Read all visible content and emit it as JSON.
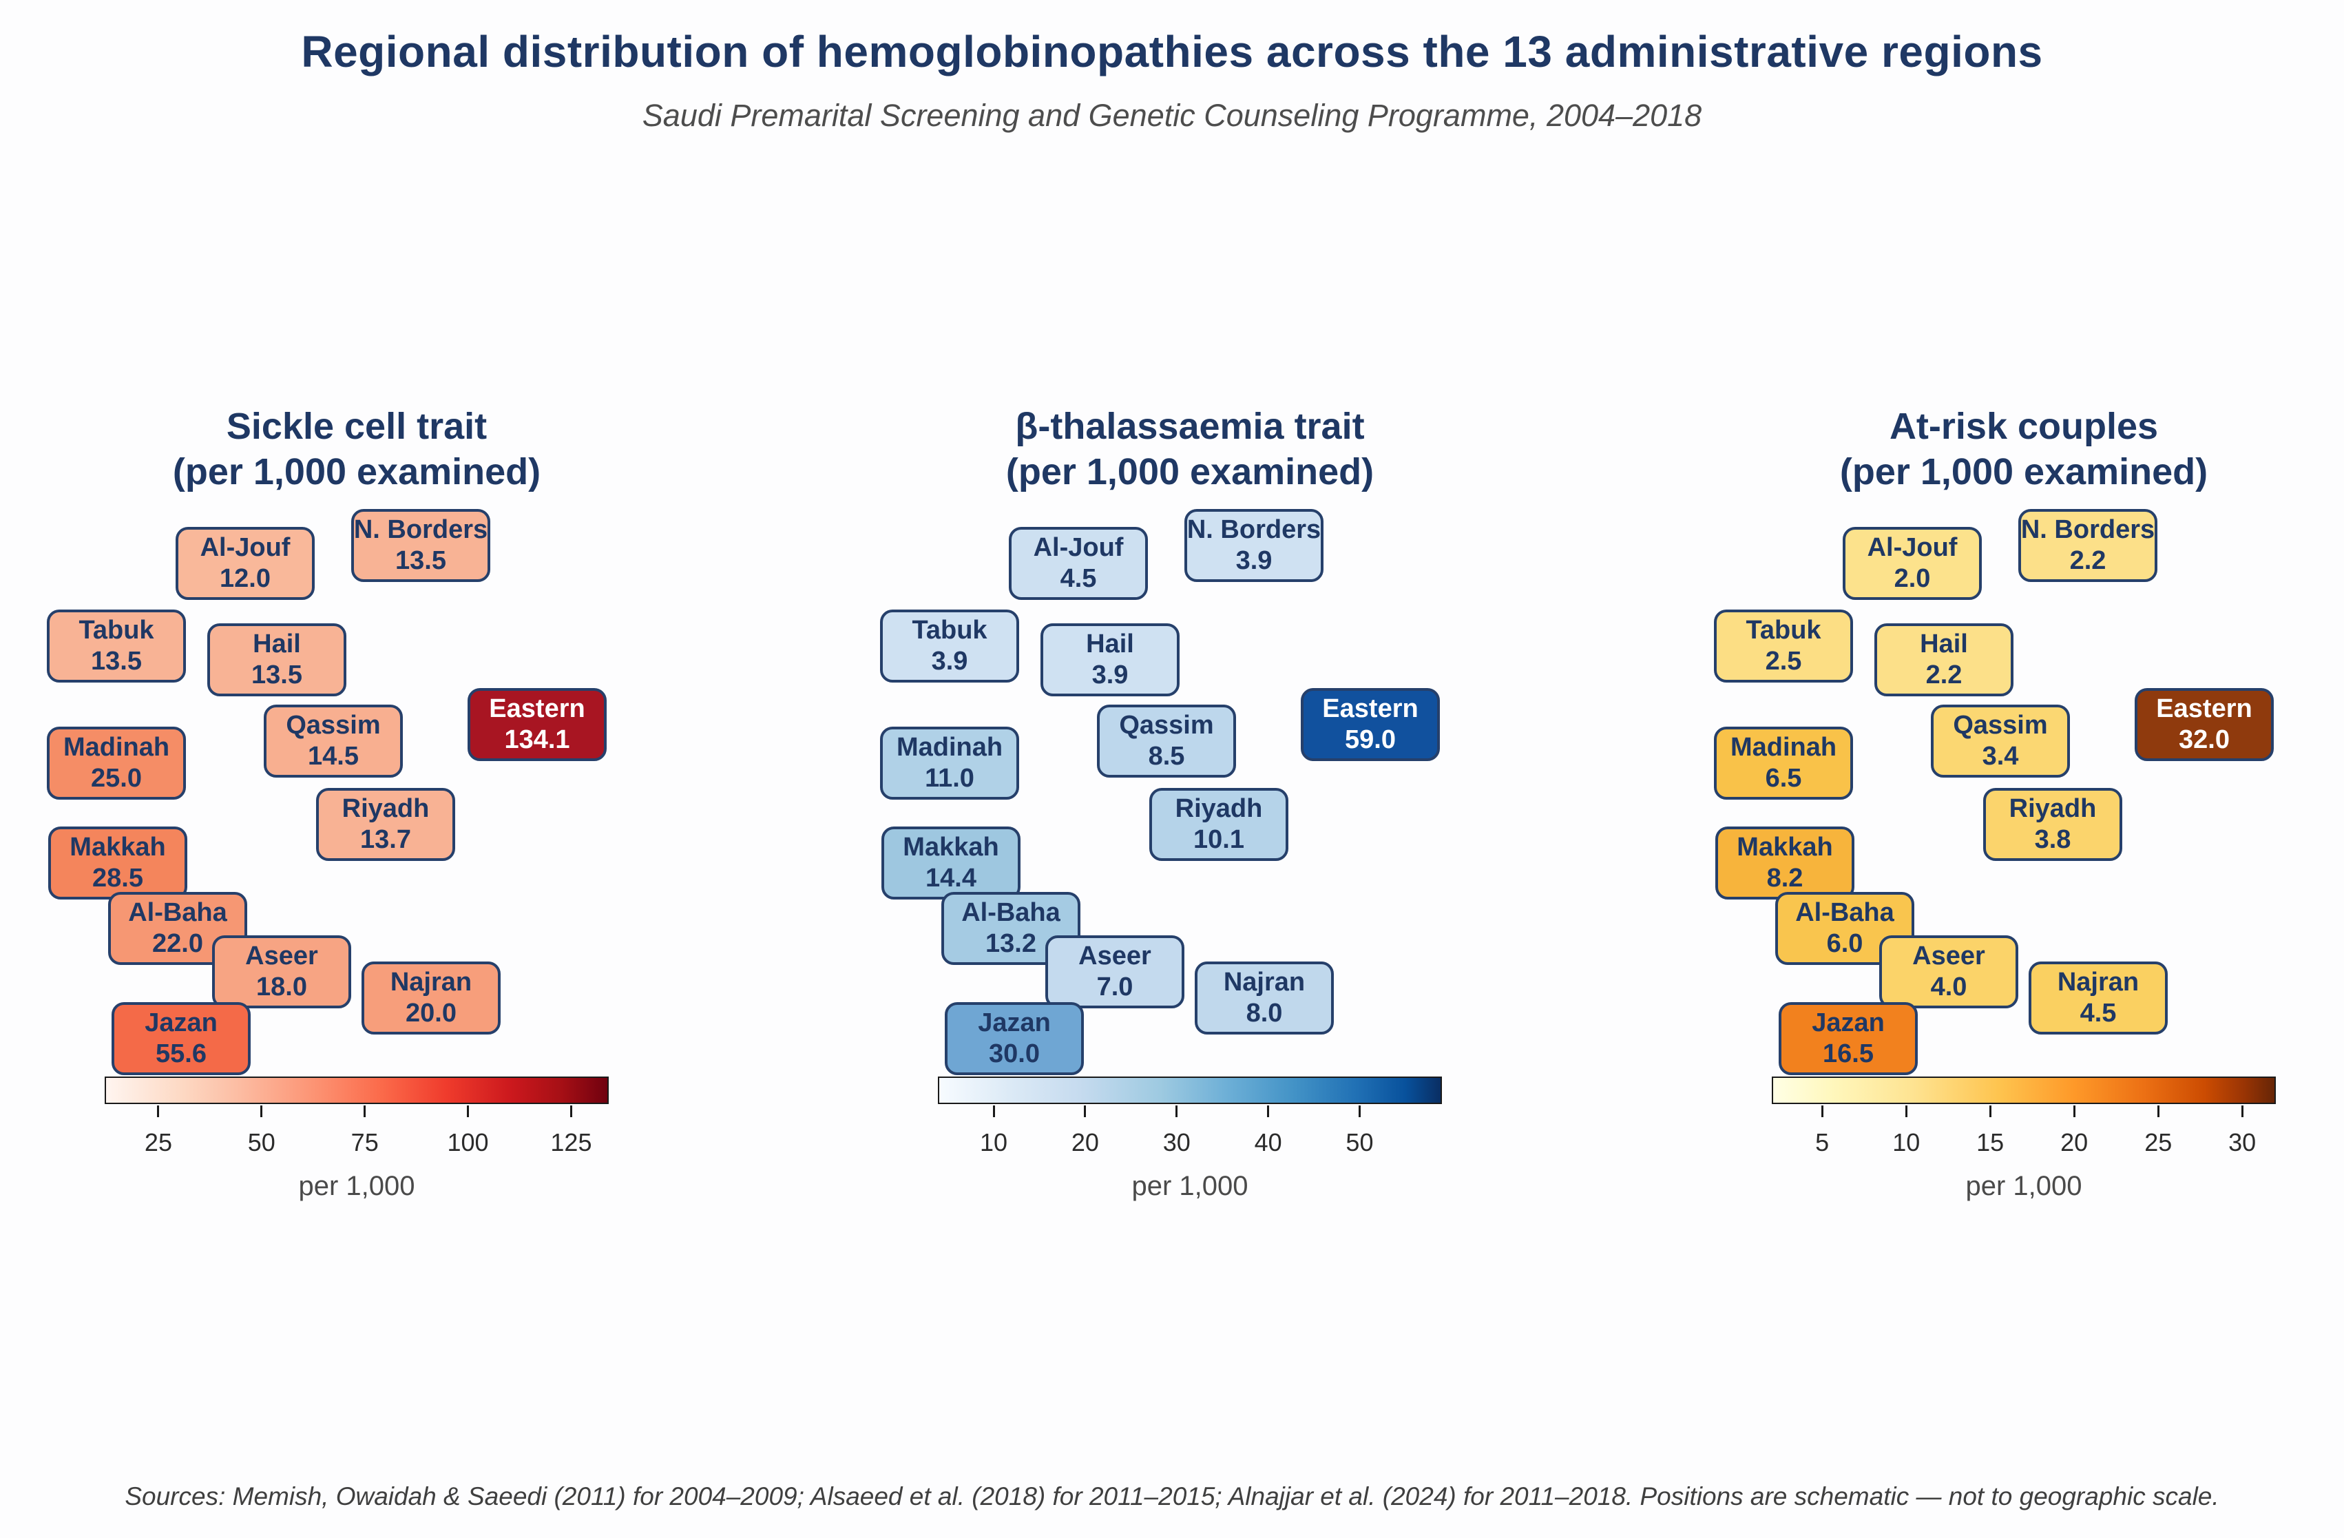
{
  "header": {
    "title": "Regional distribution of hemoglobinopathies across the 13 administrative regions",
    "subtitle": "Saudi Premarital Screening and Genetic Counseling Programme, 2004–2018"
  },
  "footer": "Sources: Memish, Owaidah & Saeedi (2011) for 2004–2009; Alsaeed et al. (2018) for 2011–2015; Alnajjar et al. (2024) for 2011–2018. Positions are schematic — not to geographic scale.",
  "colors": {
    "title_navy": "#1f3864",
    "box_border_navy": "#26406b",
    "eastern_text_white": "#ffffff"
  },
  "panels": [
    {
      "id": "sickle-cell-trait",
      "title": "Sickle cell trait",
      "title_sub": "(per 1,000 examined)",
      "colorbar": {
        "axis_label": "per 1,000",
        "colormap": "Reds",
        "colors": [
          "#fff5f0 0%",
          "#fdd9c4 15%",
          "#fcbba1 27%",
          "#fc9272 42%",
          "#fb6a4a 55%",
          "#ef3b2c 68%",
          "#cb181d 81%",
          "#a50f15 91%",
          "#70010f 100%"
        ],
        "ticks": [
          {
            "label": "25",
            "pos": 10.65
          },
          {
            "label": "50",
            "pos": 31.12
          },
          {
            "label": "75",
            "pos": 51.6
          },
          {
            "label": "100",
            "pos": 72.07
          },
          {
            "label": "125",
            "pos": 92.55
          }
        ]
      },
      "regions": [
        {
          "name": "Al-Jouf",
          "value": "12.0",
          "color": "#f9b89a",
          "text_color": "#1f3864"
        },
        {
          "name": "N. Borders",
          "value": "13.5",
          "color": "#f8b395",
          "text_color": "#1f3864"
        },
        {
          "name": "Tabuk",
          "value": "13.5",
          "color": "#f8b395",
          "text_color": "#1f3864"
        },
        {
          "name": "Hail",
          "value": "13.5",
          "color": "#f8b395",
          "text_color": "#1f3864"
        },
        {
          "name": "Madinah",
          "value": "25.0",
          "color": "#f58d66",
          "text_color": "#1f3864"
        },
        {
          "name": "Qassim",
          "value": "14.5",
          "color": "#f8af90",
          "text_color": "#1f3864"
        },
        {
          "name": "Eastern",
          "value": "134.1",
          "color": "#a81522",
          "text_color": "#ffffff"
        },
        {
          "name": "Riyadh",
          "value": "13.7",
          "color": "#f8b294",
          "text_color": "#1f3864"
        },
        {
          "name": "Makkah",
          "value": "28.5",
          "color": "#f4855c",
          "text_color": "#1f3864"
        },
        {
          "name": "Al-Baha",
          "value": "22.0",
          "color": "#f69773",
          "text_color": "#1f3864"
        },
        {
          "name": "Aseer",
          "value": "18.0",
          "color": "#f7a483",
          "text_color": "#1f3864"
        },
        {
          "name": "Najran",
          "value": "20.0",
          "color": "#f79e7b",
          "text_color": "#1f3864"
        },
        {
          "name": "Jazan",
          "value": "55.6",
          "color": "#f46a48",
          "text_color": "#1f3864"
        }
      ]
    },
    {
      "id": "beta-thalassaemia-trait",
      "title": "β-thalassaemia trait",
      "title_sub": "(per 1,000 examined)",
      "colorbar": {
        "axis_label": "per 1,000",
        "colormap": "Blues",
        "colors": [
          "#f7fbff 0%",
          "#dceaf6 14%",
          "#c6dbef 28%",
          "#9ecae1 44%",
          "#6baed6 58%",
          "#4292c6 71%",
          "#2171b5 83%",
          "#08519c 93%",
          "#092e63 100%"
        ],
        "ticks": [
          {
            "label": "10",
            "pos": 11.07
          },
          {
            "label": "20",
            "pos": 29.22
          },
          {
            "label": "30",
            "pos": 47.37
          },
          {
            "label": "40",
            "pos": 65.52
          },
          {
            "label": "50",
            "pos": 83.67
          }
        ]
      },
      "regions": [
        {
          "name": "Al-Jouf",
          "value": "4.5",
          "color": "#cde0f1",
          "text_color": "#1f3864"
        },
        {
          "name": "N. Borders",
          "value": "3.9",
          "color": "#cfe1f2",
          "text_color": "#1f3864"
        },
        {
          "name": "Tabuk",
          "value": "3.9",
          "color": "#cfe1f2",
          "text_color": "#1f3864"
        },
        {
          "name": "Hail",
          "value": "3.9",
          "color": "#cfe1f2",
          "text_color": "#1f3864"
        },
        {
          "name": "Madinah",
          "value": "11.0",
          "color": "#b0d1e7",
          "text_color": "#1f3864"
        },
        {
          "name": "Qassim",
          "value": "8.5",
          "color": "#bdd7ec",
          "text_color": "#1f3864"
        },
        {
          "name": "Eastern",
          "value": "59.0",
          "color": "#11519e",
          "text_color": "#ffffff"
        },
        {
          "name": "Riyadh",
          "value": "10.1",
          "color": "#b5d3e9",
          "text_color": "#1f3864"
        },
        {
          "name": "Makkah",
          "value": "14.4",
          "color": "#9ec7e0",
          "text_color": "#1f3864"
        },
        {
          "name": "Al-Baha",
          "value": "13.2",
          "color": "#a5cbe3",
          "text_color": "#1f3864"
        },
        {
          "name": "Aseer",
          "value": "7.0",
          "color": "#c4daee",
          "text_color": "#1f3864"
        },
        {
          "name": "Najran",
          "value": "8.0",
          "color": "#c0d8ec",
          "text_color": "#1f3864"
        },
        {
          "name": "Jazan",
          "value": "30.0",
          "color": "#6fa6d3",
          "text_color": "#1f3864"
        }
      ]
    },
    {
      "id": "at-risk-couples",
      "title": "At-risk couples",
      "title_sub": "(per 1,000 examined)",
      "colorbar": {
        "axis_label": "per 1,000",
        "colormap": "YlOrBr",
        "colors": [
          "#ffffe5 0%",
          "#fff7bc 12%",
          "#fee391 28%",
          "#fec44f 45%",
          "#fe9929 60%",
          "#ec7014 74%",
          "#cc4c02 86%",
          "#993404 94%",
          "#662506 100%"
        ],
        "ticks": [
          {
            "label": "5",
            "pos": 10.0
          },
          {
            "label": "10",
            "pos": 26.67
          },
          {
            "label": "15",
            "pos": 43.33
          },
          {
            "label": "20",
            "pos": 60.0
          },
          {
            "label": "25",
            "pos": 76.67
          },
          {
            "label": "30",
            "pos": 93.33
          }
        ]
      },
      "regions": [
        {
          "name": "Al-Jouf",
          "value": "2.0",
          "color": "#fce28c",
          "text_color": "#1f3864"
        },
        {
          "name": "N. Borders",
          "value": "2.2",
          "color": "#fce089",
          "text_color": "#1f3864"
        },
        {
          "name": "Tabuk",
          "value": "2.5",
          "color": "#fcde84",
          "text_color": "#1f3864"
        },
        {
          "name": "Hail",
          "value": "2.2",
          "color": "#fce089",
          "text_color": "#1f3864"
        },
        {
          "name": "Madinah",
          "value": "6.5",
          "color": "#f9c249",
          "text_color": "#1f3864"
        },
        {
          "name": "Qassim",
          "value": "3.4",
          "color": "#fbd772",
          "text_color": "#1f3864"
        },
        {
          "name": "Eastern",
          "value": "32.0",
          "color": "#8f3a0d",
          "text_color": "#ffffff"
        },
        {
          "name": "Riyadh",
          "value": "3.8",
          "color": "#fbd46c",
          "text_color": "#1f3864"
        },
        {
          "name": "Makkah",
          "value": "8.2",
          "color": "#f7b43c",
          "text_color": "#1f3864"
        },
        {
          "name": "Al-Baha",
          "value": "6.0",
          "color": "#f9c54e",
          "text_color": "#1f3864"
        },
        {
          "name": "Aseer",
          "value": "4.0",
          "color": "#fbd369",
          "text_color": "#1f3864"
        },
        {
          "name": "Najran",
          "value": "4.5",
          "color": "#fad061",
          "text_color": "#1f3864"
        },
        {
          "name": "Jazan",
          "value": "16.5",
          "color": "#f2811e",
          "text_color": "#1f3864"
        }
      ]
    }
  ],
  "chart_data": [
    {
      "type": "heatmap",
      "title": "Sickle cell trait (per 1,000 examined)",
      "categories": [
        "Al-Jouf",
        "N. Borders",
        "Tabuk",
        "Hail",
        "Madinah",
        "Qassim",
        "Eastern",
        "Riyadh",
        "Makkah",
        "Al-Baha",
        "Aseer",
        "Najran",
        "Jazan"
      ],
      "values": [
        12.0,
        13.5,
        13.5,
        13.5,
        25.0,
        14.5,
        134.1,
        13.7,
        28.5,
        22.0,
        18.0,
        20.0,
        55.6
      ],
      "unit": "per 1,000",
      "colormap": "Reds",
      "scale_min": 12.0,
      "scale_max": 134.1,
      "colorbar_ticks": [
        25,
        50,
        75,
        100,
        125
      ],
      "layout": "schematic map of Saudi Arabia, colorbar horizontal bottom"
    },
    {
      "type": "heatmap",
      "title": "β-thalassaemia trait (per 1,000 examined)",
      "categories": [
        "Al-Jouf",
        "N. Borders",
        "Tabuk",
        "Hail",
        "Madinah",
        "Qassim",
        "Eastern",
        "Riyadh",
        "Makkah",
        "Al-Baha",
        "Aseer",
        "Najran",
        "Jazan"
      ],
      "values": [
        4.5,
        3.9,
        3.9,
        3.9,
        11.0,
        8.5,
        59.0,
        10.1,
        14.4,
        13.2,
        7.0,
        8.0,
        30.0
      ],
      "unit": "per 1,000",
      "colormap": "Blues",
      "scale_min": 3.9,
      "scale_max": 59.0,
      "colorbar_ticks": [
        10,
        20,
        30,
        40,
        50
      ],
      "layout": "schematic map of Saudi Arabia, colorbar horizontal bottom"
    },
    {
      "type": "heatmap",
      "title": "At-risk couples (per 1,000 examined)",
      "categories": [
        "Al-Jouf",
        "N. Borders",
        "Tabuk",
        "Hail",
        "Madinah",
        "Qassim",
        "Eastern",
        "Riyadh",
        "Makkah",
        "Al-Baha",
        "Aseer",
        "Najran",
        "Jazan"
      ],
      "values": [
        2.0,
        2.2,
        2.5,
        2.2,
        6.5,
        3.4,
        32.0,
        3.8,
        8.2,
        6.0,
        4.0,
        4.5,
        16.5
      ],
      "unit": "per 1,000",
      "colormap": "YlOrBr",
      "scale_min": 2.0,
      "scale_max": 32.0,
      "colorbar_ticks": [
        5,
        10,
        15,
        20,
        25,
        30
      ],
      "layout": "schematic map of Saudi Arabia, colorbar horizontal bottom"
    }
  ]
}
